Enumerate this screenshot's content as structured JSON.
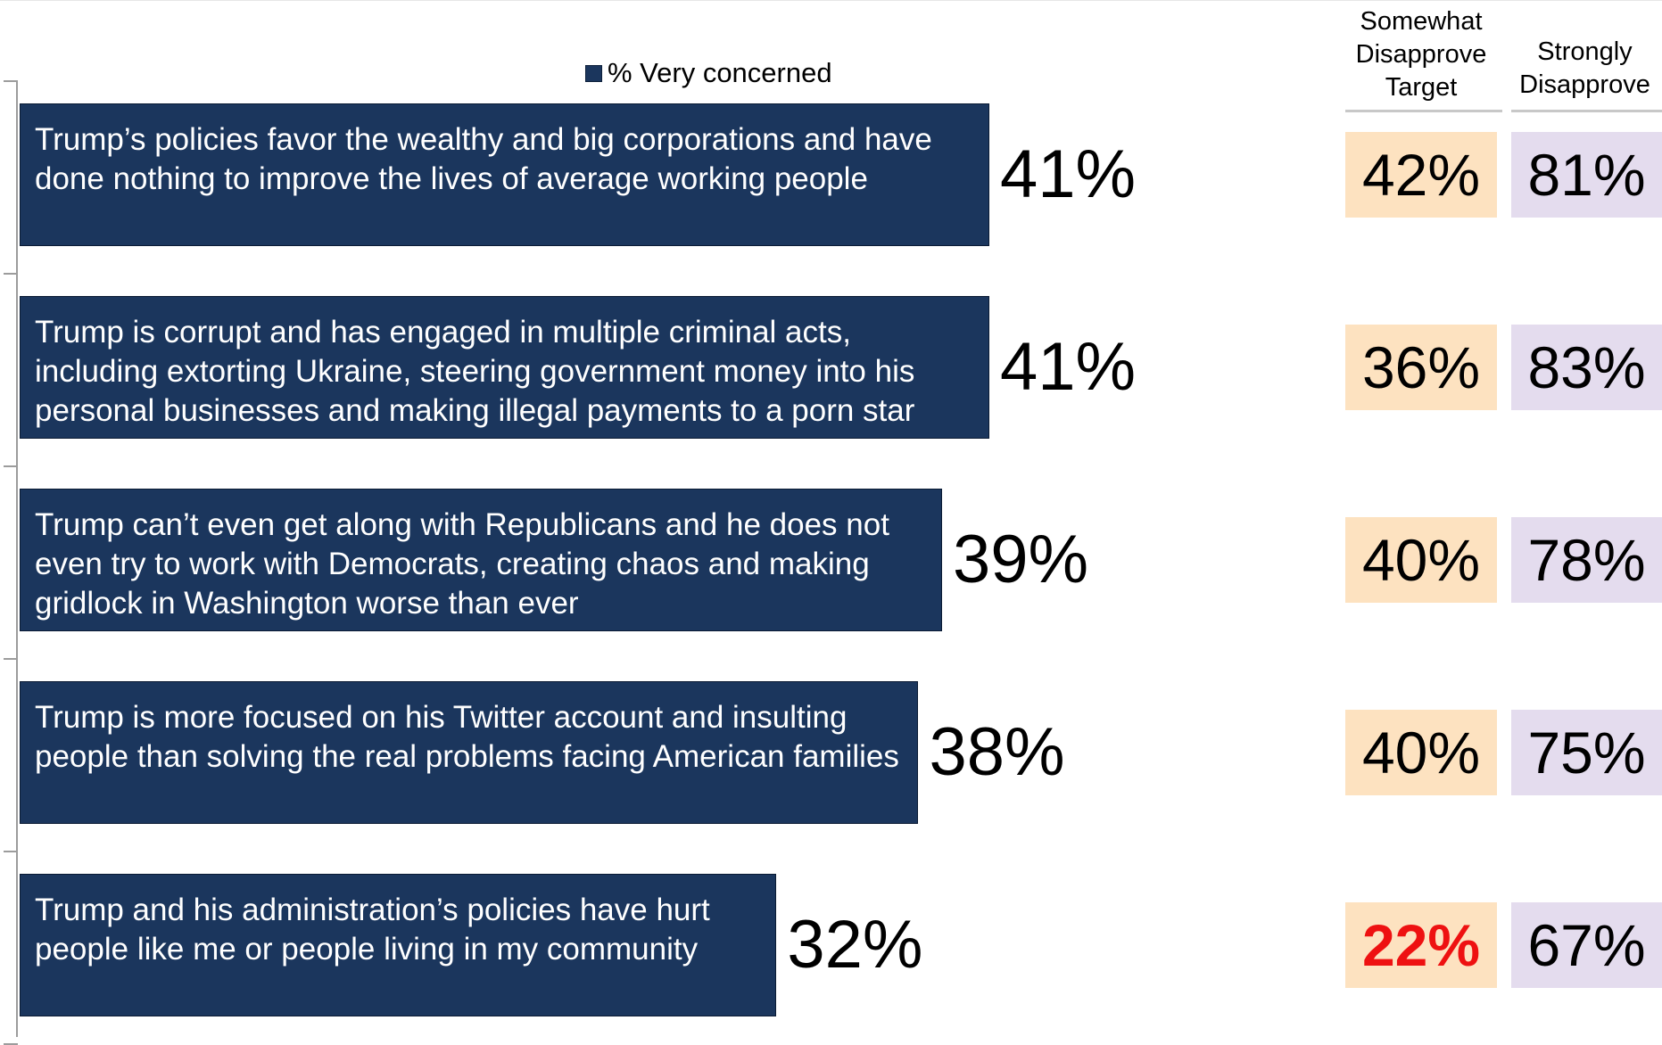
{
  "legend": {
    "label": "% Very concerned",
    "color": "#1b365d"
  },
  "columns": {
    "target_header": [
      "Somewhat",
      "Disapprove",
      "Target"
    ],
    "strong_header": [
      "Strongly",
      "Disapprove"
    ]
  },
  "colors": {
    "bar": "#1b365d",
    "target_cell": "#fde2c0",
    "strong_cell": "#e4dcee",
    "highlight_text": "#ee1111"
  },
  "chart_data": {
    "type": "bar",
    "orientation": "horizontal",
    "categories": [
      "Trump’s policies favor the wealthy and big corporations and have done nothing to improve the lives of average working people",
      "Trump is corrupt and has engaged in multiple criminal acts, including extorting Ukraine, steering government money into his personal businesses and making illegal payments to a porn star",
      "Trump can’t even get along with Republicans and he does not even try to work with Democrats, creating chaos and making gridlock in Washington worse than ever",
      "Trump is more focused on his Twitter account and insulting people than solving the real problems facing American families",
      "Trump and his administration’s policies have hurt people like me or people living in my community"
    ],
    "series": [
      {
        "name": "% Very concerned",
        "values": [
          41,
          41,
          39,
          38,
          32
        ],
        "labels": [
          "41%",
          "41%",
          "39%",
          "38%",
          "32%"
        ]
      }
    ],
    "table": {
      "somewhat_disapprove_target": [
        "42%",
        "36%",
        "40%",
        "40%",
        "22%"
      ],
      "strongly_disapprove": [
        "81%",
        "83%",
        "78%",
        "75%",
        "67%"
      ],
      "highlighted": [
        false,
        false,
        false,
        false,
        true
      ]
    },
    "xlim": [
      0,
      100
    ],
    "grid": false,
    "legend_position": "top-center"
  }
}
